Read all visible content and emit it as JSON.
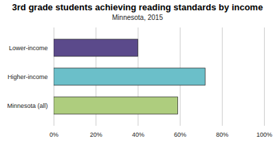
{
  "chart_data": {
    "type": "bar",
    "title": "3rd grade students achieving reading standards by income",
    "subtitle": "Minnesota, 2015",
    "orientation": "horizontal",
    "categories": [
      "Lower-income",
      "Higher-income",
      "Minnesota (all)"
    ],
    "values": [
      40,
      72,
      59
    ],
    "colors": [
      "#5b4a8b",
      "#6bbfc9",
      "#aecd7e"
    ],
    "xlim": [
      0,
      100
    ],
    "xticks": [
      {
        "value": 0,
        "label": "0%"
      },
      {
        "value": 20,
        "label": "20%"
      },
      {
        "value": 40,
        "label": "40%"
      },
      {
        "value": 60,
        "label": "60%"
      },
      {
        "value": 80,
        "label": "80%"
      },
      {
        "value": 100,
        "label": "100%"
      }
    ],
    "grid": true
  }
}
